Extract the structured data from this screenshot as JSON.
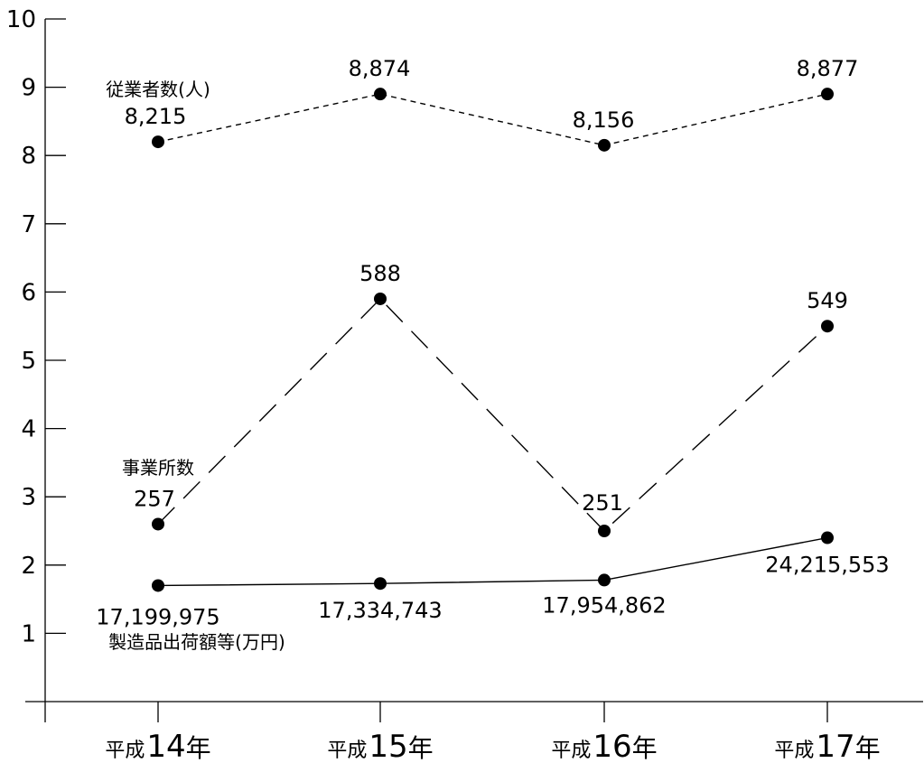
{
  "chart_data": {
    "type": "line",
    "categories": [
      {
        "prefix": "平成",
        "number": "14",
        "suffix": "年"
      },
      {
        "prefix": "平成",
        "number": "15",
        "suffix": "年"
      },
      {
        "prefix": "平成",
        "number": "16",
        "suffix": "年"
      },
      {
        "prefix": "平成",
        "number": "17",
        "suffix": "年"
      }
    ],
    "ylim": [
      0,
      10
    ],
    "yticks": [
      1,
      2,
      3,
      4,
      5,
      6,
      7,
      8,
      9,
      10
    ],
    "ytick_labels": [
      "1",
      "2",
      "3",
      "4",
      "5",
      "6",
      "7",
      "8",
      "9",
      "10"
    ],
    "grid": false,
    "legend": "none (series labelled inline)",
    "series": [
      {
        "name": "従業者数(人)",
        "line_style": "short-dash",
        "color": "#000000",
        "plot_values": [
          8.2,
          8.9,
          8.15,
          8.9
        ],
        "labels": [
          "8,215",
          "8,874",
          "8,156",
          "8,877"
        ],
        "values": [
          8215,
          8874,
          8156,
          8877
        ]
      },
      {
        "name": "事業所数",
        "line_style": "long-dash",
        "color": "#000000",
        "plot_values": [
          2.6,
          5.9,
          2.5,
          5.5
        ],
        "labels": [
          "257",
          "588",
          "251",
          "549"
        ],
        "values": [
          257,
          588,
          251,
          549
        ]
      },
      {
        "name": "製造品出荷額等(万円)",
        "line_style": "solid",
        "color": "#000000",
        "plot_values": [
          1.7,
          1.73,
          1.78,
          2.4
        ],
        "labels": [
          "17,199,975",
          "17,334,743",
          "17,954,862",
          "24,215,553"
        ],
        "values": [
          17199975,
          17334743,
          17954862,
          24215553
        ]
      }
    ]
  }
}
